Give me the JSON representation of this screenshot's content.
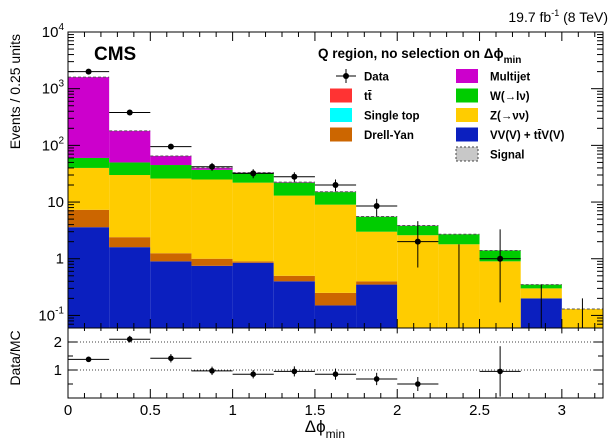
{
  "chart_data": {
    "type": "bar",
    "stacked": true,
    "lumi_label": "19.7 fb",
    "lumi_sup": "-1",
    "lumi_energy": " (8 TeV)",
    "experiment": "CMS",
    "region_label": "Q region, no selection on Δϕ",
    "region_sub": "min",
    "ylabel": "Events / 0.25 units",
    "ratio_ylabel": "Data/MC",
    "xlabel": "Δϕ",
    "xlabel_sub": "min",
    "xlim": [
      0,
      3.25
    ],
    "ylim": [
      0.06,
      10000
    ],
    "yscale": "log",
    "ratio_ylim": [
      0,
      2.5
    ],
    "bin_edges": [
      0,
      0.25,
      0.5,
      0.75,
      1.0,
      1.25,
      1.5,
      1.75,
      2.0,
      2.25,
      2.5,
      2.75,
      3.0,
      3.25
    ],
    "x_ticks": [
      "0",
      "0.5",
      "1",
      "1.5",
      "2",
      "2.5",
      "3"
    ],
    "x_tick_values": [
      0,
      0.5,
      1,
      1.5,
      2,
      2.5,
      3
    ],
    "y_ticks": [
      {
        "value": 0.1,
        "base": "10",
        "exp": "-1"
      },
      {
        "value": 1,
        "base": "1",
        "exp": ""
      },
      {
        "value": 10,
        "base": "10",
        "exp": ""
      },
      {
        "value": 100,
        "base": "10",
        "exp": "2"
      },
      {
        "value": 1000,
        "base": "10",
        "exp": "3"
      },
      {
        "value": 10000,
        "base": "10",
        "exp": "4"
      }
    ],
    "ratio_ticks": [
      "1",
      "2"
    ],
    "ratio_tick_values": [
      1,
      2
    ],
    "series": [
      {
        "name": "VV(V) + tt̄V(V)",
        "color": "#0b1fbf",
        "values": [
          3.6,
          1.6,
          0.9,
          0.75,
          0.85,
          0.4,
          0.15,
          0.35,
          0,
          0,
          0,
          0.2,
          0
        ]
      },
      {
        "name": "Drell-Yan",
        "color": "#cc6600",
        "values": [
          3.7,
          0.8,
          0.35,
          0.25,
          0.05,
          0.1,
          0.1,
          0.05,
          0,
          0,
          0,
          0,
          0
        ]
      },
      {
        "name": "Single top",
        "color": "#00ffff",
        "values": [
          0,
          0,
          0,
          0,
          0,
          0,
          0,
          0,
          0,
          0,
          0,
          0,
          0
        ]
      },
      {
        "name": "tt̄",
        "color": "#ff3333",
        "values": [
          0,
          0,
          0,
          0,
          0,
          0,
          0,
          0,
          0,
          0,
          0,
          0,
          0
        ]
      },
      {
        "name": "Z(→νν)",
        "color": "#ffcc00",
        "values": [
          32.7,
          27.6,
          24.75,
          24.0,
          21.1,
          12.5,
          8.75,
          2.6,
          2.6,
          1.8,
          0.9,
          0.1,
          0.13
        ]
      },
      {
        "name": "W(→lν)",
        "color": "#00cc00",
        "values": [
          20,
          20,
          19,
          12,
          10,
          9,
          6,
          2.5,
          1.2,
          0.9,
          0.5,
          0.05,
          0
        ]
      },
      {
        "name": "Multijet",
        "color": "#cc00cc",
        "values": [
          1540,
          130,
          20,
          3,
          1,
          0.5,
          0.2,
          0.05,
          0.05,
          0,
          0,
          0,
          0
        ]
      },
      {
        "name": "Signal",
        "color": "#c8c8c8",
        "values": [
          0,
          0,
          0,
          0,
          0,
          0,
          0,
          0,
          0,
          0,
          0,
          0,
          0
        ]
      }
    ],
    "data": {
      "name": "Data",
      "x": [
        0.125,
        0.375,
        0.625,
        0.875,
        1.125,
        1.375,
        1.625,
        1.875,
        2.125,
        2.625
      ],
      "y": [
        2000,
        380,
        95,
        42,
        32,
        28,
        20,
        8.5,
        2,
        1
      ],
      "y_low": [
        1960,
        361,
        85.5,
        35.5,
        26.3,
        22.7,
        15.5,
        5.6,
        0.7,
        0.17
      ],
      "y_high": [
        2044,
        400,
        105,
        49,
        38,
        33.5,
        25,
        11.4,
        4.6,
        3.3
      ],
      "ratio": [
        1.38,
        2.1,
        1.42,
        0.97,
        0.85,
        0.95,
        0.85,
        0.68,
        0.5,
        0.95
      ],
      "ratio_err": [
        0.05,
        0.12,
        0.15,
        0.15,
        0.15,
        0.18,
        0.2,
        0.22,
        0.25,
        0.9
      ],
      "x_err": 0.125
    },
    "open_error_bars": [
      {
        "x": 2.375,
        "y_high": 1.8
      },
      {
        "x": 2.875,
        "y_high": 0.35
      },
      {
        "x": 3.125,
        "y_high": 0.2
      }
    ],
    "legend_columns": [
      [
        "Data",
        "tt̄",
        "Single top",
        "Drell-Yan"
      ],
      [
        "Multijet",
        "W(→lν)",
        "Z(→νν)",
        "VV(V) + tt̄V(V)",
        "Signal"
      ]
    ]
  }
}
